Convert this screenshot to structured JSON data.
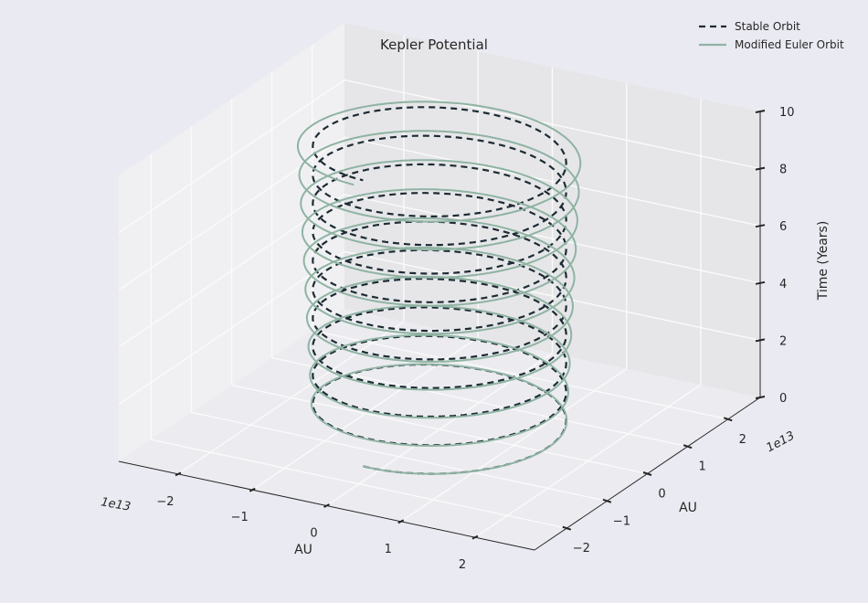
{
  "chart_data": {
    "type": "line",
    "projection": "3d",
    "title": "Kepler Potential",
    "xlabel": "AU",
    "ylabel": "AU",
    "zlabel": "Time (Years)",
    "x_offset_label": "1e13",
    "y_offset_label": "1e13",
    "xticks": [
      -2,
      -1,
      0,
      1,
      2
    ],
    "yticks": [
      -2,
      -1,
      0,
      1,
      2
    ],
    "zticks": [
      0,
      2,
      4,
      6,
      8,
      10
    ],
    "xlim": [
      -2.8,
      2.8
    ],
    "ylim": [
      -2.8,
      2.8
    ],
    "zlim": [
      0,
      10
    ],
    "grid": true,
    "legend_position": "top-right",
    "series": [
      {
        "name": "Stable Orbit",
        "style": "dashed",
        "color": "#1c2b33",
        "orbit_radius": 1.5,
        "orbits": 10,
        "t_range": [
          0,
          10
        ]
      },
      {
        "name": "Modified Euler Orbit",
        "style": "solid",
        "color": "#8fb3a3",
        "orbit_radius": 1.5,
        "orbits": 10,
        "t_range": [
          0,
          10
        ]
      }
    ]
  },
  "colors": {
    "background": "#eaeaf2",
    "pane_left": "#f0f0f2",
    "pane_floor": "#ececf0",
    "pane_back": "#e6e6e9",
    "grid": "#fafafa",
    "axis": "#262626"
  }
}
